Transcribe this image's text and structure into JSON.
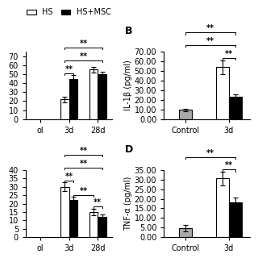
{
  "chart_data": [
    {
      "type": "bar",
      "categories": [
        "ol",
        "3d",
        "28d"
      ],
      "series": [
        {
          "name": "HS",
          "color": "#ffffff",
          "values": [
            null,
            22,
            55
          ],
          "errors": [
            null,
            3,
            3
          ]
        },
        {
          "name": "HS+MSC",
          "color": "#000000",
          "values": [
            null,
            45,
            50
          ],
          "errors": [
            null,
            4,
            3
          ]
        }
      ],
      "ylim": [
        0,
        75
      ],
      "yticks": [
        0,
        10,
        20,
        30,
        40,
        50,
        60,
        70
      ],
      "legend": "upper center",
      "annotations": [
        {
          "text": "**",
          "from": [
            "3d",
            "HS"
          ],
          "to": [
            "3d",
            "HS+MSC"
          ]
        },
        {
          "text": "**",
          "from": [
            "3d",
            "HS"
          ],
          "to": [
            "28d",
            "HS+MSC"
          ]
        },
        {
          "text": "**",
          "from": [
            "3d",
            "HS"
          ],
          "to": [
            "28d",
            "HS+MSC"
          ]
        }
      ]
    },
    {
      "type": "bar",
      "title": "B",
      "categories": [
        "Control",
        "3d"
      ],
      "series": [
        {
          "name": "Control",
          "color": "#aaaaaa",
          "values": [
            9.5,
            null
          ],
          "errors": [
            1.0,
            null
          ]
        },
        {
          "name": "HS",
          "color": "#ffffff",
          "values": [
            null,
            54
          ],
          "errors": [
            null,
            7
          ]
        },
        {
          "name": "HS+MSC",
          "color": "#000000",
          "values": [
            null,
            23
          ],
          "errors": [
            null,
            3
          ]
        }
      ],
      "y_label": "IL-1β (pg/ml)",
      "ylim": [
        0,
        70
      ],
      "yticks": [
        {
          "value": 0.0,
          "label": "0.00"
        },
        {
          "value": 10.0,
          "label": "10.00"
        },
        {
          "value": 20.0,
          "label": "20.00"
        },
        {
          "value": 30.0,
          "label": "30.00"
        },
        {
          "value": 40.0,
          "label": "40.00"
        },
        {
          "value": 50.0,
          "label": "50.00"
        },
        {
          "value": 60.0,
          "label": "60.00"
        },
        {
          "value": 70.0,
          "label": "70.00"
        }
      ],
      "annotations": [
        {
          "text": "**",
          "from": [
            "3d",
            "HS"
          ],
          "to": [
            "3d",
            "HS+MSC"
          ]
        },
        {
          "text": "**",
          "from": [
            "Control",
            "Control"
          ],
          "to": [
            "3d",
            "HS+MSC"
          ]
        },
        {
          "text": "**",
          "from": [
            "Control",
            "Control"
          ],
          "to": [
            "3d",
            "HS+MSC"
          ]
        }
      ]
    },
    {
      "type": "bar",
      "categories": [
        "ol",
        "3d",
        "28d"
      ],
      "series": [
        {
          "name": "HS",
          "color": "#ffffff",
          "values": [
            null,
            30,
            15
          ],
          "errors": [
            null,
            2.5,
            2
          ]
        },
        {
          "name": "HS+MSC",
          "color": "#000000",
          "values": [
            null,
            22,
            12
          ],
          "errors": [
            null,
            2,
            1.5
          ]
        }
      ],
      "ylim": [
        0,
        40
      ],
      "yticks": [
        0,
        5,
        10,
        15,
        20,
        25,
        30,
        35,
        40
      ],
      "annotations": [
        {
          "text": "**",
          "from": [
            "3d",
            "HS"
          ],
          "to": [
            "3d",
            "HS+MSC"
          ]
        },
        {
          "text": "**",
          "from": [
            "3d",
            "HS+MSC"
          ],
          "to": [
            "28d",
            "HS"
          ]
        },
        {
          "text": "**",
          "from": [
            "28d",
            "HS"
          ],
          "to": [
            "28d",
            "HS+MSC"
          ]
        },
        {
          "text": "**",
          "from": [
            "3d",
            "HS"
          ],
          "to": [
            "28d",
            "HS+MSC"
          ]
        },
        {
          "text": "**",
          "from": [
            "3d",
            "HS"
          ],
          "to": [
            "28d",
            "HS+MSC"
          ]
        }
      ]
    },
    {
      "type": "bar",
      "title": "D",
      "categories": [
        "Control",
        "3d"
      ],
      "series": [
        {
          "name": "Control",
          "color": "#aaaaaa",
          "values": [
            4.8,
            null
          ],
          "errors": [
            1.5,
            null
          ]
        },
        {
          "name": "HS",
          "color": "#ffffff",
          "values": [
            null,
            30.5
          ],
          "errors": [
            null,
            3.5
          ]
        },
        {
          "name": "HS+MSC",
          "color": "#000000",
          "values": [
            null,
            18
          ],
          "errors": [
            null,
            2.5
          ]
        }
      ],
      "y_label": "TNF-α (pg/ml)",
      "ylim": [
        0,
        35
      ],
      "yticks": [
        {
          "value": 0.0,
          "label": "0.00"
        },
        {
          "value": 5.0,
          "label": "5.00"
        },
        {
          "value": 10.0,
          "label": "10.00"
        },
        {
          "value": 15.0,
          "label": "15.00"
        },
        {
          "value": 20.0,
          "label": "20.00"
        },
        {
          "value": 25.0,
          "label": "25.00"
        },
        {
          "value": 30.0,
          "label": "30.00"
        },
        {
          "value": 35.0,
          "label": "35.00"
        }
      ],
      "annotations": [
        {
          "text": "**",
          "from": [
            "3d",
            "HS"
          ],
          "to": [
            "3d",
            "HS+MSC"
          ]
        },
        {
          "text": "**",
          "from": [
            "Control",
            "Control"
          ],
          "to": [
            "3d",
            "HS+MSC"
          ]
        }
      ]
    }
  ]
}
